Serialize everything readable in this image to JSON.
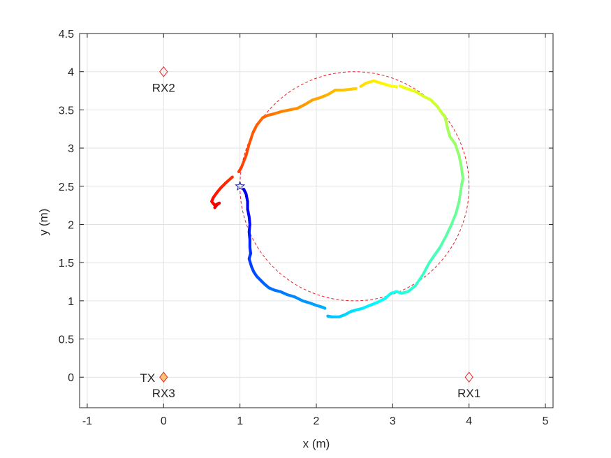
{
  "chart_data": {
    "type": "scatter",
    "title": "",
    "xlabel": "x (m)",
    "ylabel": "y (m)",
    "xlim": [
      -1.1,
      5.1
    ],
    "ylim": [
      -0.4,
      4.5
    ],
    "xticks": [
      -1,
      0,
      1,
      2,
      3,
      4,
      5
    ],
    "xtick_labels": [
      "-1",
      "0",
      "1",
      "2",
      "3",
      "4",
      "5"
    ],
    "yticks": [
      0,
      0.5,
      1,
      1.5,
      2,
      2.5,
      3,
      3.5,
      4,
      4.5
    ],
    "ytick_labels": [
      "0",
      "0.5",
      "1",
      "1.5",
      "2",
      "2.5",
      "3",
      "3.5",
      "4",
      "4.5"
    ],
    "grid": true,
    "reference_circle": {
      "center": [
        2.5,
        2.5
      ],
      "radius": 1.5,
      "color": "#e8202a",
      "style": "dashed"
    },
    "start_marker": {
      "x": 1.0,
      "y": 2.5,
      "symbol": "star",
      "color": "#1a1aa0"
    },
    "markers": [
      {
        "label": "RX2",
        "x": 0,
        "y": 4,
        "label_position": "below"
      },
      {
        "label": "RX1",
        "x": 4,
        "y": 0,
        "label_position": "below"
      },
      {
        "label": "RX3",
        "x": 0,
        "y": 0,
        "label_position": "below"
      },
      {
        "label": "TX",
        "x": 0,
        "y": 0,
        "label_position": "left"
      }
    ],
    "marker_color": "#e8202a",
    "tx_marker_fill": "#f7c873",
    "trajectory": {
      "colormap": "jet",
      "x": [
        1.05,
        1.08,
        1.1,
        1.1,
        1.12,
        1.13,
        1.12,
        1.13,
        1.13,
        1.14,
        1.12,
        1.15,
        1.18,
        1.22,
        1.27,
        1.32,
        1.38,
        1.45,
        1.53,
        1.62,
        1.72,
        1.82,
        1.92,
        2.0,
        2.07,
        2.12,
        2.15,
        2.2,
        2.3,
        2.38,
        2.45,
        2.52,
        2.6,
        2.7,
        2.8,
        2.9,
        2.98,
        3.05,
        3.12,
        3.2,
        3.3,
        3.4,
        3.48,
        3.55,
        3.62,
        3.7,
        3.77,
        3.83,
        3.87,
        3.9,
        3.92,
        3.9,
        3.87,
        3.82,
        3.75,
        3.72,
        3.7,
        3.68,
        3.65,
        3.58,
        3.5,
        3.4,
        3.3,
        3.18,
        3.08,
        3.05,
        2.95,
        2.85,
        2.75,
        2.65,
        2.57,
        2.52,
        2.45,
        2.35,
        2.25,
        2.15,
        2.05,
        1.95,
        1.85,
        1.75,
        1.65,
        1.55,
        1.45,
        1.37,
        1.3,
        1.22,
        1.17,
        1.12,
        1.08,
        1.02,
        0.98,
        0.9,
        0.82,
        0.75,
        0.7,
        0.65,
        0.63,
        0.67,
        0.73,
        0.7,
        0.67
      ],
      "y": [
        2.46,
        2.4,
        2.3,
        2.2,
        2.1,
        2.0,
        1.9,
        1.8,
        1.7,
        1.62,
        1.55,
        1.45,
        1.38,
        1.32,
        1.27,
        1.22,
        1.17,
        1.14,
        1.12,
        1.08,
        1.05,
        1.0,
        0.97,
        0.94,
        0.92,
        0.9,
        0.8,
        0.79,
        0.79,
        0.82,
        0.86,
        0.88,
        0.9,
        0.94,
        0.98,
        1.03,
        1.1,
        1.12,
        1.1,
        1.12,
        1.2,
        1.35,
        1.5,
        1.6,
        1.7,
        1.85,
        2.0,
        2.15,
        2.3,
        2.5,
        2.6,
        2.75,
        2.9,
        3.05,
        3.15,
        3.25,
        3.35,
        3.42,
        3.45,
        3.55,
        3.63,
        3.68,
        3.74,
        3.78,
        3.82,
        3.8,
        3.82,
        3.85,
        3.88,
        3.85,
        3.8,
        3.78,
        3.77,
        3.76,
        3.76,
        3.7,
        3.66,
        3.63,
        3.57,
        3.52,
        3.5,
        3.48,
        3.45,
        3.43,
        3.4,
        3.3,
        3.2,
        3.05,
        2.9,
        2.75,
        2.68,
        2.62,
        2.55,
        2.48,
        2.42,
        2.35,
        2.3,
        2.25,
        2.28,
        2.26,
        2.22
      ],
      "gaps_after_index": [
        25,
        64,
        70,
        90
      ]
    }
  }
}
